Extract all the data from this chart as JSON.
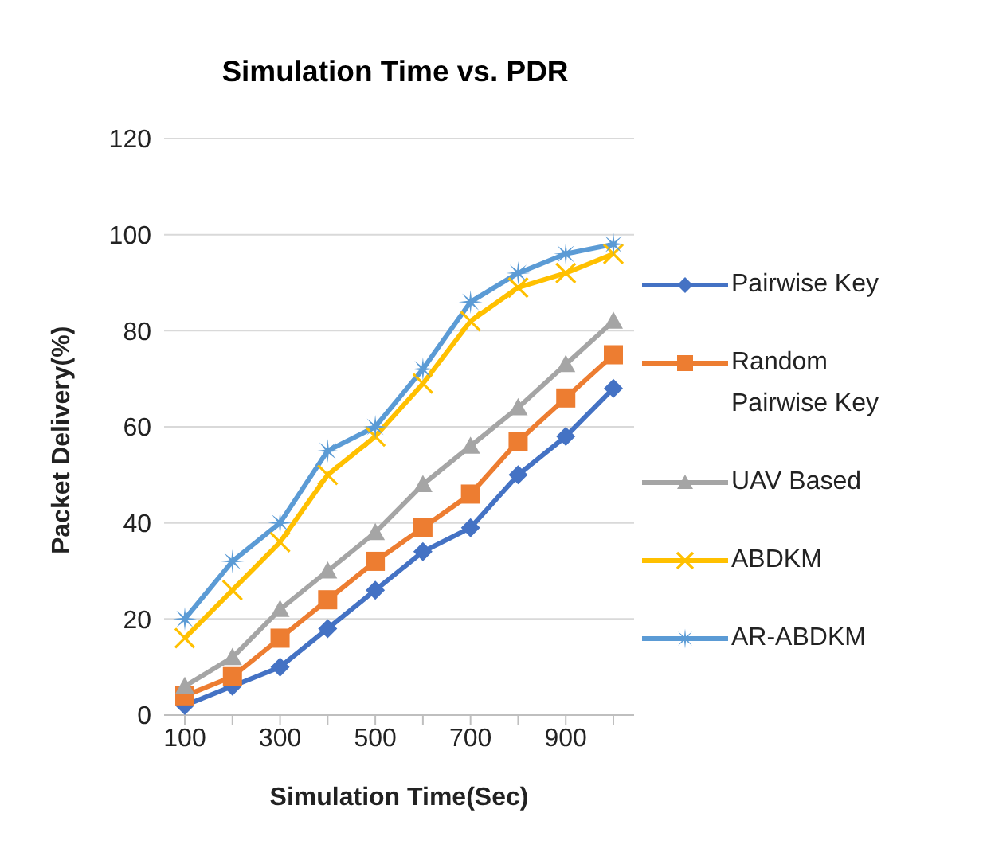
{
  "chart_data": {
    "type": "line",
    "title": "Simulation Time vs. PDR",
    "xlabel": "Simulation Time(Sec)",
    "ylabel": "Packet Delivery(%)",
    "categories": [
      "100",
      null,
      "300",
      null,
      "500",
      null,
      "700",
      null,
      "900",
      null
    ],
    "series": [
      {
        "name": "Pairwise Key",
        "color": "#4472c4",
        "marker": "diamond",
        "values": [
          2,
          6,
          10,
          18,
          26,
          34,
          39,
          50,
          58,
          68
        ]
      },
      {
        "name": "Random Pairwise Key",
        "color": "#ed7d31",
        "marker": "square",
        "values": [
          4,
          8,
          16,
          24,
          32,
          39,
          46,
          57,
          66,
          75
        ]
      },
      {
        "name": "UAV Based",
        "color": "#a5a5a5",
        "marker": "triangle",
        "values": [
          6,
          12,
          22,
          30,
          38,
          48,
          56,
          64,
          73,
          82
        ]
      },
      {
        "name": "ABDKM",
        "color": "#ffc000",
        "marker": "cross",
        "values": [
          16,
          26,
          36,
          50,
          58,
          69,
          82,
          89,
          92,
          96
        ]
      },
      {
        "name": "AR-ABDKM",
        "color": "#5b9bd5",
        "marker": "star",
        "values": [
          20,
          32,
          40,
          55,
          60,
          72,
          86,
          92,
          96,
          98
        ]
      }
    ],
    "ylim": [
      0,
      120
    ],
    "yticks": [
      0,
      20,
      40,
      60,
      80,
      100,
      120
    ],
    "grid": "y",
    "legend": "right"
  }
}
